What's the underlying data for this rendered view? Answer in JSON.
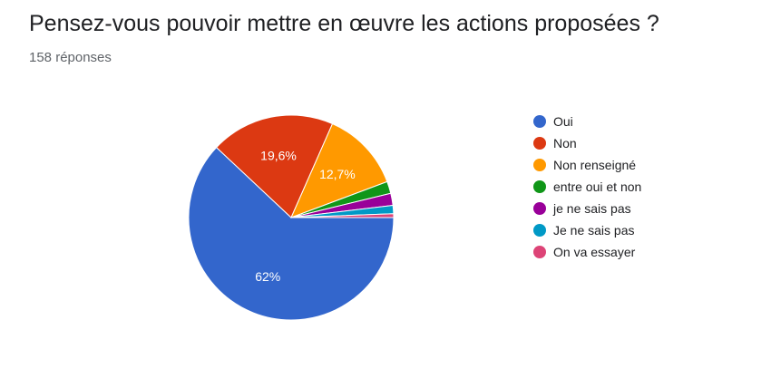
{
  "header": {
    "title": "Pensez-vous pouvoir mettre en œuvre les actions proposées ?",
    "responses": "158 réponses"
  },
  "chart_data": {
    "type": "pie",
    "series": [
      {
        "name": "Oui",
        "value": 62.0,
        "label": "62%",
        "color": "#3366cc"
      },
      {
        "name": "Non",
        "value": 19.6,
        "label": "19,6%",
        "color": "#dc3912"
      },
      {
        "name": "Non renseigné",
        "value": 12.7,
        "label": "12,7%",
        "color": "#ff9900"
      },
      {
        "name": "entre oui et non",
        "value": 1.9,
        "label": "",
        "color": "#109618"
      },
      {
        "name": "je ne sais pas",
        "value": 1.9,
        "label": "",
        "color": "#990099"
      },
      {
        "name": "Je ne sais pas",
        "value": 1.3,
        "label": "",
        "color": "#0099c6"
      },
      {
        "name": "On va essayer",
        "value": 0.6,
        "label": "",
        "color": "#dd4477"
      }
    ],
    "legend_position": "right"
  }
}
